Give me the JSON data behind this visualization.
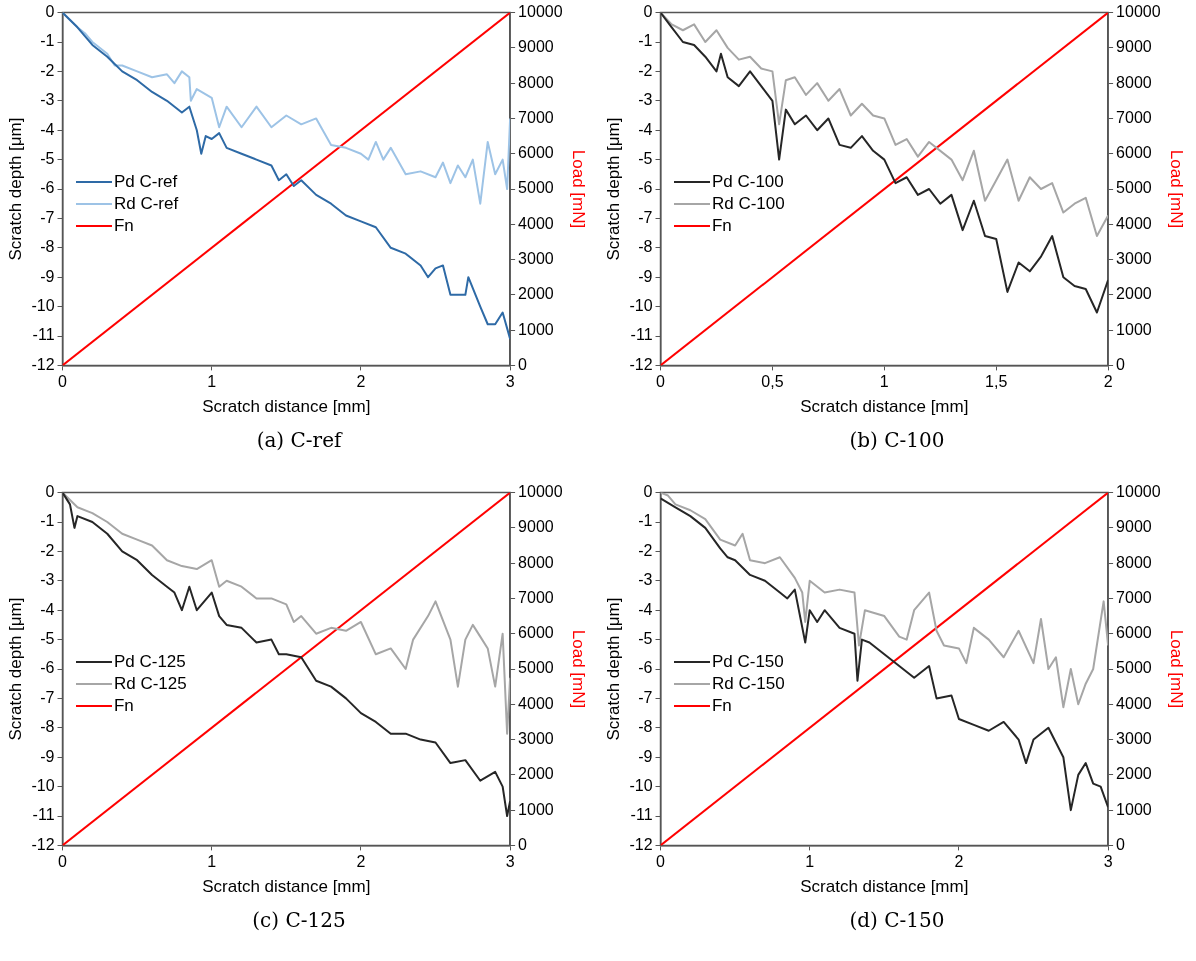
{
  "chart_data": [
    {
      "type": "line",
      "title": "(a) C-ref",
      "xlabel": "Scratch distance [mm]",
      "ylabel": "Scratch depth [μm]",
      "y2label": "Load [mN]",
      "xlim": [
        0,
        3
      ],
      "xticks": [
        0,
        1,
        2,
        3
      ],
      "ylim": [
        -12,
        0
      ],
      "yticks": [
        -12,
        -11,
        -10,
        -9,
        -8,
        -7,
        -6,
        -5,
        -4,
        -3,
        -2,
        -1,
        0
      ],
      "y2lim": [
        0,
        10000
      ],
      "y2ticks": [
        0,
        1000,
        2000,
        3000,
        4000,
        5000,
        6000,
        7000,
        8000,
        9000,
        10000
      ],
      "grid": false,
      "legend": "left",
      "marker": "none",
      "line_style": "solid",
      "series": [
        {
          "name": "Pd C-ref",
          "color": "#2e6aa6",
          "x": [
            0,
            0.1,
            0.2,
            0.3,
            0.4,
            0.5,
            0.6,
            0.7,
            0.8,
            0.85,
            0.9,
            0.93,
            0.96,
            1.0,
            1.05,
            1.1,
            1.2,
            1.3,
            1.4,
            1.45,
            1.5,
            1.55,
            1.6,
            1.7,
            1.8,
            1.9,
            2.0,
            2.1,
            2.2,
            2.3,
            2.4,
            2.45,
            2.5,
            2.55,
            2.6,
            2.7,
            2.72,
            2.8,
            2.85,
            2.9,
            2.95,
            3.0
          ],
          "values": [
            0,
            -0.5,
            -1.1,
            -1.5,
            -2.0,
            -2.3,
            -2.7,
            -3.0,
            -3.4,
            -3.2,
            -4.0,
            -4.8,
            -4.2,
            -4.3,
            -4.1,
            -4.6,
            -4.8,
            -5.0,
            -5.2,
            -5.7,
            -5.5,
            -5.9,
            -5.7,
            -6.2,
            -6.5,
            -6.9,
            -7.1,
            -7.3,
            -8.0,
            -8.2,
            -8.6,
            -9.0,
            -8.7,
            -8.6,
            -9.6,
            -9.6,
            -9.0,
            -10.0,
            -10.6,
            -10.6,
            -10.2,
            -11.1
          ]
        },
        {
          "name": "Rd C-ref",
          "color": "#9dc3e6",
          "x": [
            0,
            0.1,
            0.15,
            0.2,
            0.3,
            0.35,
            0.4,
            0.5,
            0.6,
            0.7,
            0.75,
            0.8,
            0.85,
            0.86,
            0.9,
            1.0,
            1.05,
            1.1,
            1.2,
            1.3,
            1.4,
            1.5,
            1.6,
            1.7,
            1.8,
            1.9,
            2.0,
            2.05,
            2.1,
            2.15,
            2.2,
            2.3,
            2.4,
            2.5,
            2.55,
            2.6,
            2.65,
            2.7,
            2.75,
            2.8,
            2.85,
            2.9,
            2.95,
            2.98,
            3.0
          ],
          "values": [
            0,
            -0.5,
            -0.7,
            -1.0,
            -1.4,
            -1.8,
            -1.8,
            -2.0,
            -2.2,
            -2.1,
            -2.4,
            -2.0,
            -2.2,
            -3.0,
            -2.6,
            -2.9,
            -3.9,
            -3.2,
            -3.9,
            -3.2,
            -3.9,
            -3.5,
            -3.8,
            -3.6,
            -4.5,
            -4.6,
            -4.8,
            -5.0,
            -4.4,
            -5.0,
            -4.6,
            -5.5,
            -5.4,
            -5.6,
            -5.1,
            -5.8,
            -5.2,
            -5.6,
            -5.0,
            -6.5,
            -4.4,
            -5.5,
            -5.0,
            -6.0,
            -3.6
          ]
        },
        {
          "name": "Fn",
          "color": "#ff0000",
          "axis": "y2",
          "x": [
            0,
            3
          ],
          "values": [
            0,
            10000
          ]
        }
      ]
    },
    {
      "type": "line",
      "title": "(b) C-100",
      "xlabel": "Scratch distance [mm]",
      "ylabel": "Scratch depth [μm]",
      "y2label": "Load [mN]",
      "xlim": [
        0,
        2
      ],
      "xticks": [
        0,
        {
          "value": 0.5,
          "label": "0,5"
        },
        1,
        {
          "value": 1.5,
          "label": "1,5"
        },
        2
      ],
      "ylim": [
        -12,
        0
      ],
      "yticks": [
        -12,
        -11,
        -10,
        -9,
        -8,
        -7,
        -6,
        -5,
        -4,
        -3,
        -2,
        -1,
        0
      ],
      "y2lim": [
        0,
        10000
      ],
      "y2ticks": [
        0,
        1000,
        2000,
        3000,
        4000,
        5000,
        6000,
        7000,
        8000,
        9000,
        10000
      ],
      "grid": false,
      "legend": "left",
      "marker": "none",
      "line_style": "solid",
      "series": [
        {
          "name": "Pd C-100",
          "color": "#262626",
          "x": [
            0,
            0.05,
            0.1,
            0.15,
            0.2,
            0.25,
            0.27,
            0.3,
            0.35,
            0.4,
            0.45,
            0.5,
            0.53,
            0.56,
            0.6,
            0.65,
            0.7,
            0.75,
            0.8,
            0.85,
            0.9,
            0.95,
            1.0,
            1.05,
            1.1,
            1.15,
            1.2,
            1.25,
            1.3,
            1.35,
            1.4,
            1.45,
            1.5,
            1.55,
            1.6,
            1.65,
            1.7,
            1.75,
            1.8,
            1.85,
            1.9,
            1.95,
            2.0
          ],
          "values": [
            0,
            -0.5,
            -1.0,
            -1.1,
            -1.5,
            -2.0,
            -1.4,
            -2.2,
            -2.5,
            -2.0,
            -2.5,
            -3.0,
            -5.0,
            -3.3,
            -3.8,
            -3.5,
            -4.0,
            -3.6,
            -4.5,
            -4.6,
            -4.2,
            -4.7,
            -5.0,
            -5.8,
            -5.6,
            -6.2,
            -6.0,
            -6.5,
            -6.2,
            -7.4,
            -6.4,
            -7.6,
            -7.7,
            -9.5,
            -8.5,
            -8.8,
            -8.3,
            -7.6,
            -9.0,
            -9.3,
            -9.4,
            -10.2,
            -9.1
          ]
        },
        {
          "name": "Rd C-100",
          "color": "#a6a6a6",
          "x": [
            0,
            0.05,
            0.1,
            0.15,
            0.2,
            0.25,
            0.3,
            0.35,
            0.4,
            0.45,
            0.5,
            0.53,
            0.56,
            0.6,
            0.65,
            0.7,
            0.75,
            0.8,
            0.85,
            0.9,
            0.95,
            1.0,
            1.05,
            1.1,
            1.15,
            1.2,
            1.3,
            1.35,
            1.4,
            1.45,
            1.5,
            1.55,
            1.6,
            1.65,
            1.7,
            1.75,
            1.8,
            1.85,
            1.9,
            1.95,
            2.0
          ],
          "values": [
            0,
            -0.4,
            -0.6,
            -0.4,
            -1.0,
            -0.6,
            -1.2,
            -1.6,
            -1.5,
            -1.9,
            -2.0,
            -3.8,
            -2.3,
            -2.2,
            -2.8,
            -2.4,
            -3.0,
            -2.6,
            -3.5,
            -3.1,
            -3.5,
            -3.6,
            -4.5,
            -4.3,
            -4.9,
            -4.4,
            -5.0,
            -5.7,
            -4.7,
            -6.4,
            -5.7,
            -5.0,
            -6.4,
            -5.6,
            -6.0,
            -5.8,
            -6.8,
            -6.5,
            -6.3,
            -7.6,
            -6.9
          ]
        },
        {
          "name": "Fn",
          "color": "#ff0000",
          "axis": "y2",
          "x": [
            0,
            2
          ],
          "values": [
            0,
            10000
          ]
        }
      ]
    },
    {
      "type": "line",
      "title": "(c) C-125",
      "xlabel": "Scratch distance [mm]",
      "ylabel": "Scratch depth [μm]",
      "y2label": "Load [mN]",
      "xlim": [
        0,
        3
      ],
      "xticks": [
        0,
        1,
        2,
        3
      ],
      "ylim": [
        -12,
        0
      ],
      "yticks": [
        -12,
        -11,
        -10,
        -9,
        -8,
        -7,
        -6,
        -5,
        -4,
        -3,
        -2,
        -1,
        0
      ],
      "y2lim": [
        0,
        10000
      ],
      "y2ticks": [
        0,
        1000,
        2000,
        3000,
        4000,
        5000,
        6000,
        7000,
        8000,
        9000,
        10000
      ],
      "grid": false,
      "legend": "left",
      "marker": "none",
      "line_style": "solid",
      "series": [
        {
          "name": "Pd C-125",
          "color": "#262626",
          "x": [
            0,
            0.05,
            0.08,
            0.1,
            0.2,
            0.3,
            0.4,
            0.5,
            0.6,
            0.7,
            0.75,
            0.8,
            0.85,
            0.9,
            1.0,
            1.05,
            1.1,
            1.2,
            1.3,
            1.4,
            1.45,
            1.5,
            1.6,
            1.7,
            1.8,
            1.9,
            2.0,
            2.1,
            2.2,
            2.3,
            2.4,
            2.5,
            2.6,
            2.7,
            2.8,
            2.9,
            2.95,
            2.98,
            3.0
          ],
          "values": [
            0,
            -0.4,
            -1.2,
            -0.8,
            -1.0,
            -1.4,
            -2.0,
            -2.3,
            -2.8,
            -3.2,
            -3.4,
            -4.0,
            -3.2,
            -4.0,
            -3.4,
            -4.2,
            -4.5,
            -4.6,
            -5.1,
            -5.0,
            -5.5,
            -5.5,
            -5.6,
            -6.4,
            -6.6,
            -7.0,
            -7.5,
            -7.8,
            -8.2,
            -8.2,
            -8.4,
            -8.5,
            -9.2,
            -9.1,
            -9.8,
            -9.5,
            -10.0,
            -11.0,
            -10.5
          ]
        },
        {
          "name": "Rd C-125",
          "color": "#a6a6a6",
          "x": [
            0,
            0.1,
            0.2,
            0.3,
            0.4,
            0.5,
            0.6,
            0.7,
            0.8,
            0.9,
            1.0,
            1.05,
            1.1,
            1.2,
            1.3,
            1.4,
            1.5,
            1.55,
            1.6,
            1.7,
            1.8,
            1.9,
            2.0,
            2.1,
            2.2,
            2.3,
            2.35,
            2.45,
            2.5,
            2.6,
            2.65,
            2.7,
            2.75,
            2.8,
            2.85,
            2.9,
            2.95,
            2.98,
            3.0
          ],
          "values": [
            0,
            -0.5,
            -0.7,
            -1.0,
            -1.4,
            -1.6,
            -1.8,
            -2.3,
            -2.5,
            -2.6,
            -2.3,
            -3.2,
            -3.0,
            -3.2,
            -3.6,
            -3.6,
            -3.8,
            -4.4,
            -4.2,
            -4.8,
            -4.6,
            -4.7,
            -4.4,
            -5.5,
            -5.3,
            -6.0,
            -5.0,
            -4.2,
            -3.7,
            -5.0,
            -6.6,
            -5.0,
            -4.5,
            -4.9,
            -5.3,
            -6.6,
            -4.8,
            -8.2,
            -6.3
          ]
        },
        {
          "name": "Fn",
          "color": "#ff0000",
          "axis": "y2",
          "x": [
            0,
            3
          ],
          "values": [
            0,
            10000
          ]
        }
      ]
    },
    {
      "type": "line",
      "title": "(d) C-150",
      "xlabel": "Scratch distance [mm]",
      "ylabel": "Scratch depth [μm]",
      "y2label": "Load [mN]",
      "xlim": [
        0,
        3
      ],
      "xticks": [
        0,
        1,
        2,
        3
      ],
      "ylim": [
        -12,
        0
      ],
      "yticks": [
        -12,
        -11,
        -10,
        -9,
        -8,
        -7,
        -6,
        -5,
        -4,
        -3,
        -2,
        -1,
        0
      ],
      "y2lim": [
        0,
        10000
      ],
      "y2ticks": [
        0,
        1000,
        2000,
        3000,
        4000,
        5000,
        6000,
        7000,
        8000,
        9000,
        10000
      ],
      "grid": false,
      "legend": "left",
      "marker": "none",
      "line_style": "solid",
      "series": [
        {
          "name": "Pd C-150",
          "color": "#262626",
          "x": [
            0,
            0.1,
            0.2,
            0.3,
            0.4,
            0.45,
            0.5,
            0.6,
            0.7,
            0.8,
            0.85,
            0.9,
            0.97,
            1.0,
            1.05,
            1.1,
            1.2,
            1.3,
            1.32,
            1.35,
            1.4,
            1.5,
            1.6,
            1.7,
            1.8,
            1.85,
            1.95,
            2.0,
            2.1,
            2.2,
            2.3,
            2.4,
            2.45,
            2.5,
            2.6,
            2.7,
            2.75,
            2.8,
            2.85,
            2.9,
            2.95,
            3.0
          ],
          "values": [
            -0.2,
            -0.5,
            -0.8,
            -1.2,
            -1.9,
            -2.2,
            -2.3,
            -2.8,
            -3.0,
            -3.4,
            -3.6,
            -3.3,
            -5.1,
            -4.0,
            -4.4,
            -4.0,
            -4.6,
            -4.8,
            -6.4,
            -5.0,
            -5.1,
            -5.5,
            -5.9,
            -6.3,
            -5.9,
            -7.0,
            -6.9,
            -7.7,
            -7.9,
            -8.1,
            -7.8,
            -8.4,
            -9.2,
            -8.4,
            -8.0,
            -9.0,
            -10.8,
            -9.6,
            -9.2,
            -9.9,
            -10.0,
            -10.7
          ]
        },
        {
          "name": "Rd C-150",
          "color": "#a6a6a6",
          "x": [
            0,
            0.05,
            0.1,
            0.2,
            0.3,
            0.4,
            0.5,
            0.55,
            0.6,
            0.7,
            0.8,
            0.9,
            0.95,
            0.97,
            1.0,
            1.1,
            1.2,
            1.3,
            1.33,
            1.37,
            1.5,
            1.6,
            1.65,
            1.7,
            1.8,
            1.85,
            1.9,
            2.0,
            2.05,
            2.1,
            2.2,
            2.3,
            2.4,
            2.5,
            2.55,
            2.6,
            2.65,
            2.7,
            2.75,
            2.8,
            2.85,
            2.9,
            2.97,
            3.0
          ],
          "values": [
            0,
            -0.1,
            -0.4,
            -0.6,
            -0.9,
            -1.6,
            -1.8,
            -1.4,
            -2.3,
            -2.4,
            -2.2,
            -2.9,
            -3.4,
            -4.4,
            -3.0,
            -3.4,
            -3.3,
            -3.4,
            -5.2,
            -4.0,
            -4.2,
            -4.9,
            -5.0,
            -4.0,
            -3.4,
            -4.7,
            -5.2,
            -5.3,
            -5.8,
            -4.6,
            -5.0,
            -5.6,
            -4.7,
            -5.8,
            -4.3,
            -6.0,
            -5.6,
            -7.3,
            -6.0,
            -7.2,
            -6.5,
            -6.0,
            -3.7,
            -5.2
          ]
        },
        {
          "name": "Fn",
          "color": "#ff0000",
          "axis": "y2",
          "x": [
            0,
            3
          ],
          "values": [
            0,
            10000
          ]
        }
      ]
    }
  ]
}
